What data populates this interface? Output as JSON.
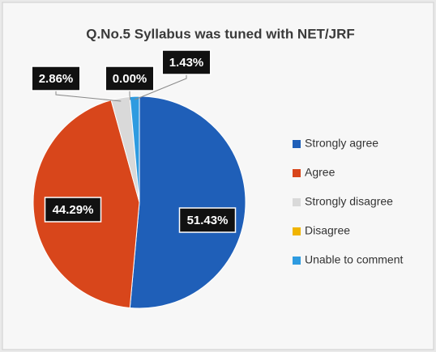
{
  "chart_data": {
    "type": "pie",
    "title": "Q.No.5 Syllabus was tuned with NET/JRF",
    "categories": [
      "Strongly agree",
      "Agree",
      "Strongly disagree",
      "Disagree",
      "Unable to comment"
    ],
    "values": [
      51.43,
      44.29,
      2.86,
      0.0,
      1.43
    ],
    "value_labels": [
      "51.43%",
      "44.29%",
      "2.86%",
      "0.00%",
      "1.43%"
    ],
    "colors": [
      "#1f5fb8",
      "#d8461b",
      "#d9d9d9",
      "#f0b400",
      "#2e9be0"
    ],
    "legend": "right"
  }
}
